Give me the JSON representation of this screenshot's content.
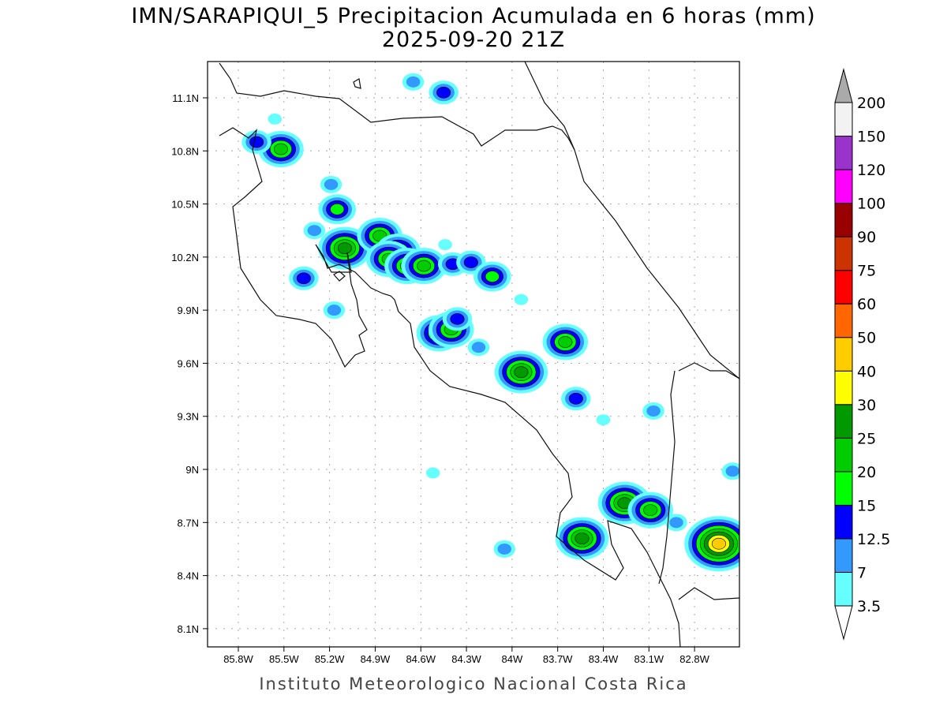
{
  "title": {
    "line1": "IMN/SARAPIQUI_5 Precipitacion Acumulada en 6 horas (mm)",
    "line2": "2025-09-20 21Z"
  },
  "footer": "Instituto Meteorologico Nacional Costa Rica",
  "axes": {
    "lon_ticks": [
      "85.8W",
      "85.5W",
      "85.2W",
      "84.9W",
      "84.6W",
      "84.3W",
      "84W",
      "83.7W",
      "83.4W",
      "83.1W",
      "82.8W"
    ],
    "lon_values": [
      -85.8,
      -85.5,
      -85.2,
      -84.9,
      -84.6,
      -84.3,
      -84.0,
      -83.7,
      -83.4,
      -83.1,
      -82.8
    ],
    "lat_ticks": [
      "11.1N",
      "10.8N",
      "10.5N",
      "10.2N",
      "9.9N",
      "9.6N",
      "9.3N",
      "9N",
      "8.7N",
      "8.4N",
      "8.1N"
    ],
    "lat_values": [
      11.1,
      10.8,
      10.5,
      10.2,
      9.9,
      9.6,
      9.3,
      9.0,
      8.7,
      8.4,
      8.1
    ],
    "lon_range": [
      -86.0,
      -82.5
    ],
    "lat_range": [
      8.0,
      11.3
    ]
  },
  "colorbar": {
    "labels": [
      "3.5",
      "7",
      "12.5",
      "15",
      "20",
      "25",
      "30",
      "40",
      "50",
      "60",
      "75",
      "90",
      "100",
      "120",
      "150",
      "200"
    ],
    "levels": [
      3.5,
      7,
      12.5,
      15,
      20,
      25,
      30,
      40,
      50,
      60,
      75,
      90,
      100,
      120,
      150,
      200
    ],
    "colors": [
      "#66ffff",
      "#3399ff",
      "#0000ff",
      "#00ff00",
      "#00cc00",
      "#009900",
      "#ffff00",
      "#ffcc00",
      "#ff6600",
      "#ff0000",
      "#cc3300",
      "#990000",
      "#ff00ff",
      "#9933cc",
      "#f2f2f2"
    ],
    "over_color": "#aaaaaa"
  },
  "precip_cells": [
    {
      "lon": -85.52,
      "lat": 10.81,
      "max": 20
    },
    {
      "lon": -85.68,
      "lat": 10.85,
      "max": 12.5
    },
    {
      "lon": -85.15,
      "lat": 10.47,
      "max": 15
    },
    {
      "lon": -85.1,
      "lat": 10.25,
      "max": 25
    },
    {
      "lon": -84.87,
      "lat": 10.32,
      "max": 20
    },
    {
      "lon": -84.75,
      "lat": 10.23,
      "max": 20
    },
    {
      "lon": -84.81,
      "lat": 10.19,
      "max": 20
    },
    {
      "lon": -84.69,
      "lat": 10.15,
      "max": 20
    },
    {
      "lon": -84.58,
      "lat": 10.15,
      "max": 20
    },
    {
      "lon": -84.39,
      "lat": 10.16,
      "max": 12.5
    },
    {
      "lon": -84.27,
      "lat": 10.17,
      "max": 12.5
    },
    {
      "lon": -84.13,
      "lat": 10.09,
      "max": 15
    },
    {
      "lon": -85.37,
      "lat": 10.08,
      "max": 12.5
    },
    {
      "lon": -85.17,
      "lat": 9.9,
      "max": 7
    },
    {
      "lon": -84.48,
      "lat": 9.77,
      "max": 20
    },
    {
      "lon": -84.4,
      "lat": 9.79,
      "max": 20
    },
    {
      "lon": -84.36,
      "lat": 9.85,
      "max": 12.5
    },
    {
      "lon": -84.22,
      "lat": 9.69,
      "max": 7
    },
    {
      "lon": -83.94,
      "lat": 9.55,
      "max": 25
    },
    {
      "lon": -83.65,
      "lat": 9.72,
      "max": 20
    },
    {
      "lon": -83.58,
      "lat": 9.4,
      "max": 12.5
    },
    {
      "lon": -83.26,
      "lat": 8.81,
      "max": 25
    },
    {
      "lon": -83.09,
      "lat": 8.77,
      "max": 20
    },
    {
      "lon": -83.54,
      "lat": 8.61,
      "max": 25
    },
    {
      "lon": -82.64,
      "lat": 8.58,
      "max": 40
    },
    {
      "lon": -84.45,
      "lat": 11.13,
      "max": 12.5
    },
    {
      "lon": -84.65,
      "lat": 11.19,
      "max": 7
    },
    {
      "lon": -84.05,
      "lat": 8.55,
      "max": 7
    },
    {
      "lon": -84.52,
      "lat": 8.98,
      "max": 3.5
    },
    {
      "lon": -83.94,
      "lat": 9.96,
      "max": 3.5
    },
    {
      "lon": -84.44,
      "lat": 10.27,
      "max": 3.5
    },
    {
      "lon": -85.19,
      "lat": 10.61,
      "max": 7
    },
    {
      "lon": -83.07,
      "lat": 9.33,
      "max": 7
    },
    {
      "lon": -83.4,
      "lat": 9.28,
      "max": 3.5
    },
    {
      "lon": -85.56,
      "lat": 10.98,
      "max": 3.5
    },
    {
      "lon": -85.3,
      "lat": 10.35,
      "max": 7
    },
    {
      "lon": -82.55,
      "lat": 8.99,
      "max": 7
    },
    {
      "lon": -82.92,
      "lat": 8.7,
      "max": 7
    }
  ]
}
